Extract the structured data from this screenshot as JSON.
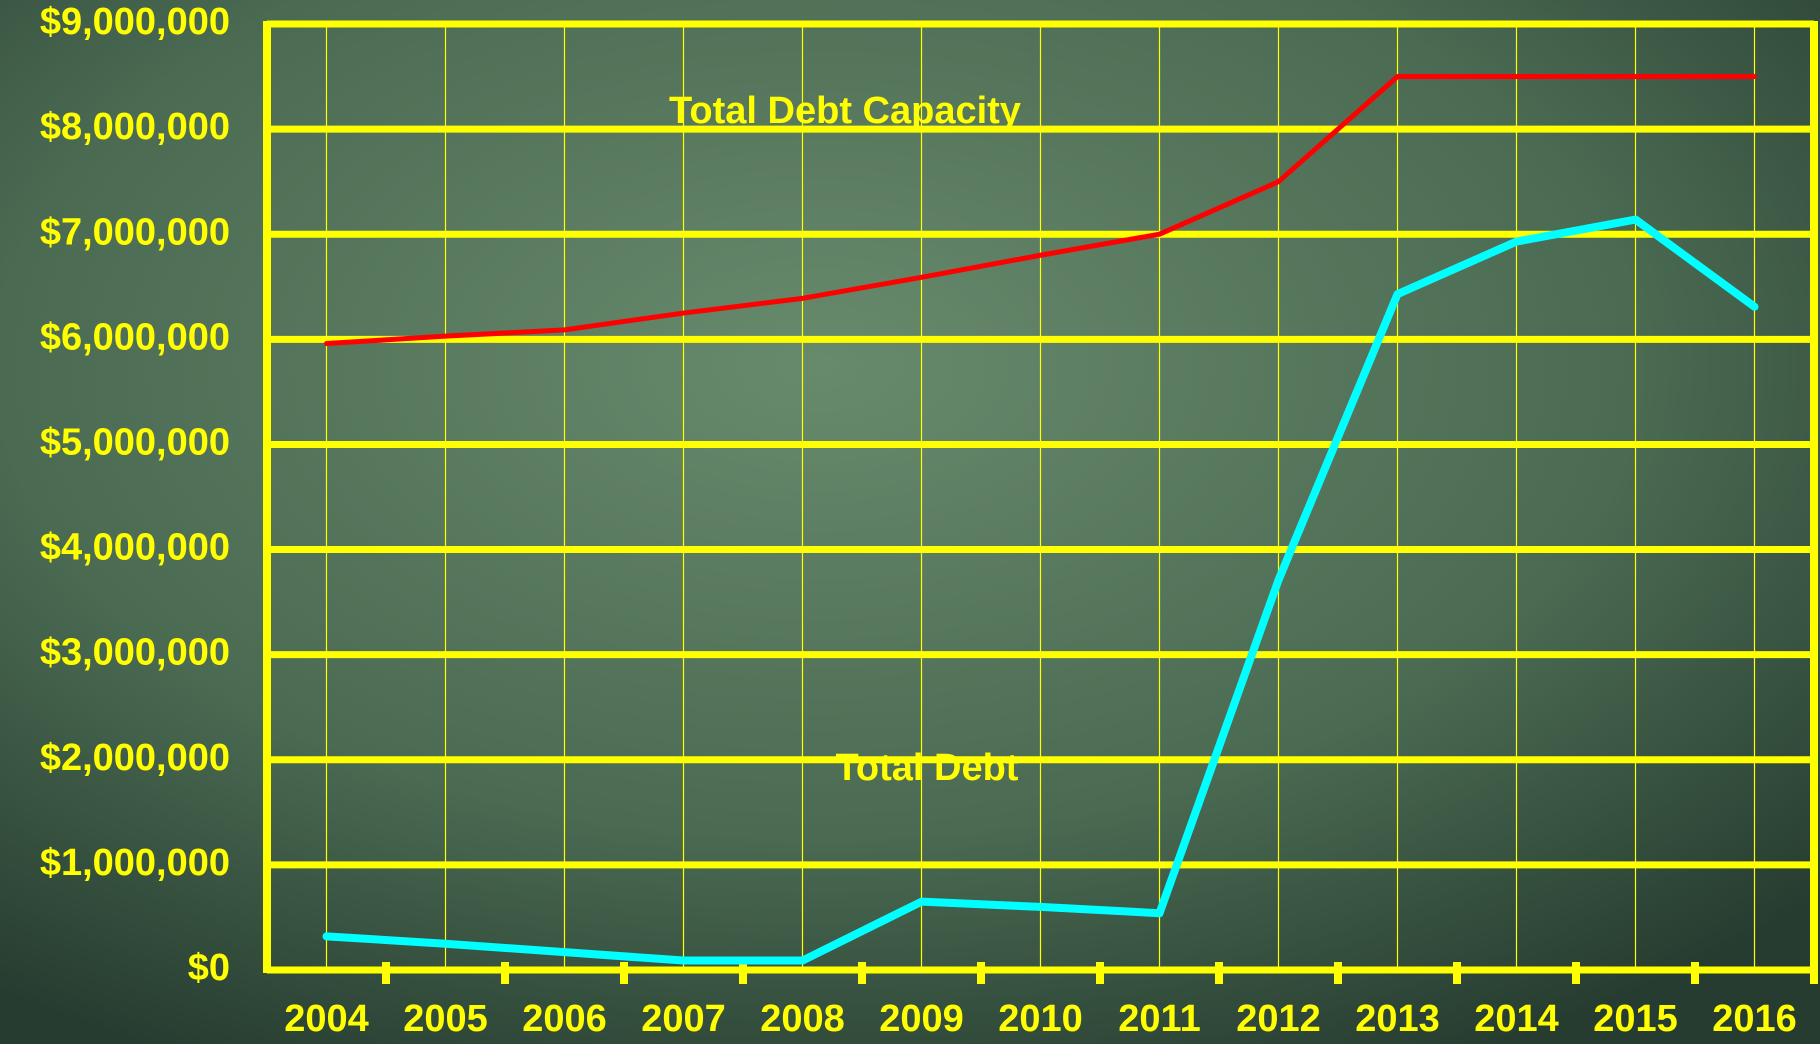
{
  "chart_data": {
    "type": "line",
    "categories": [
      "2004",
      "2005",
      "2006",
      "2007",
      "2008",
      "2009",
      "2010",
      "2011",
      "2012",
      "2013",
      "2014",
      "2015",
      "2016"
    ],
    "series": [
      {
        "name": "Total Debt Capacity",
        "color": "#ff0000",
        "values": [
          5960000,
          6030000,
          6090000,
          6250000,
          6390000,
          6590000,
          6800000,
          7000000,
          7500000,
          8500000,
          8500000,
          8500000,
          8500000
        ]
      },
      {
        "name": "Total Debt",
        "color": "#00ffff",
        "values": [
          320000,
          250000,
          170000,
          90000,
          90000,
          650000,
          600000,
          540000,
          3710000,
          6430000,
          6930000,
          7140000,
          6310000
        ]
      }
    ],
    "ylim": [
      0,
      9000000
    ],
    "yticks": [
      {
        "value": 0,
        "label": "$0"
      },
      {
        "value": 1000000,
        "label": "$1,000,000"
      },
      {
        "value": 2000000,
        "label": "$2,000,000"
      },
      {
        "value": 3000000,
        "label": "$3,000,000"
      },
      {
        "value": 4000000,
        "label": "$4,000,000"
      },
      {
        "value": 5000000,
        "label": "$5,000,000"
      },
      {
        "value": 6000000,
        "label": "$6,000,000"
      },
      {
        "value": 7000000,
        "label": "$7,000,000"
      },
      {
        "value": 8000000,
        "label": "$8,000,000"
      },
      {
        "value": 9000000,
        "label": "$9,000,000"
      }
    ],
    "grid": true,
    "axis_color": "#ffff00"
  }
}
